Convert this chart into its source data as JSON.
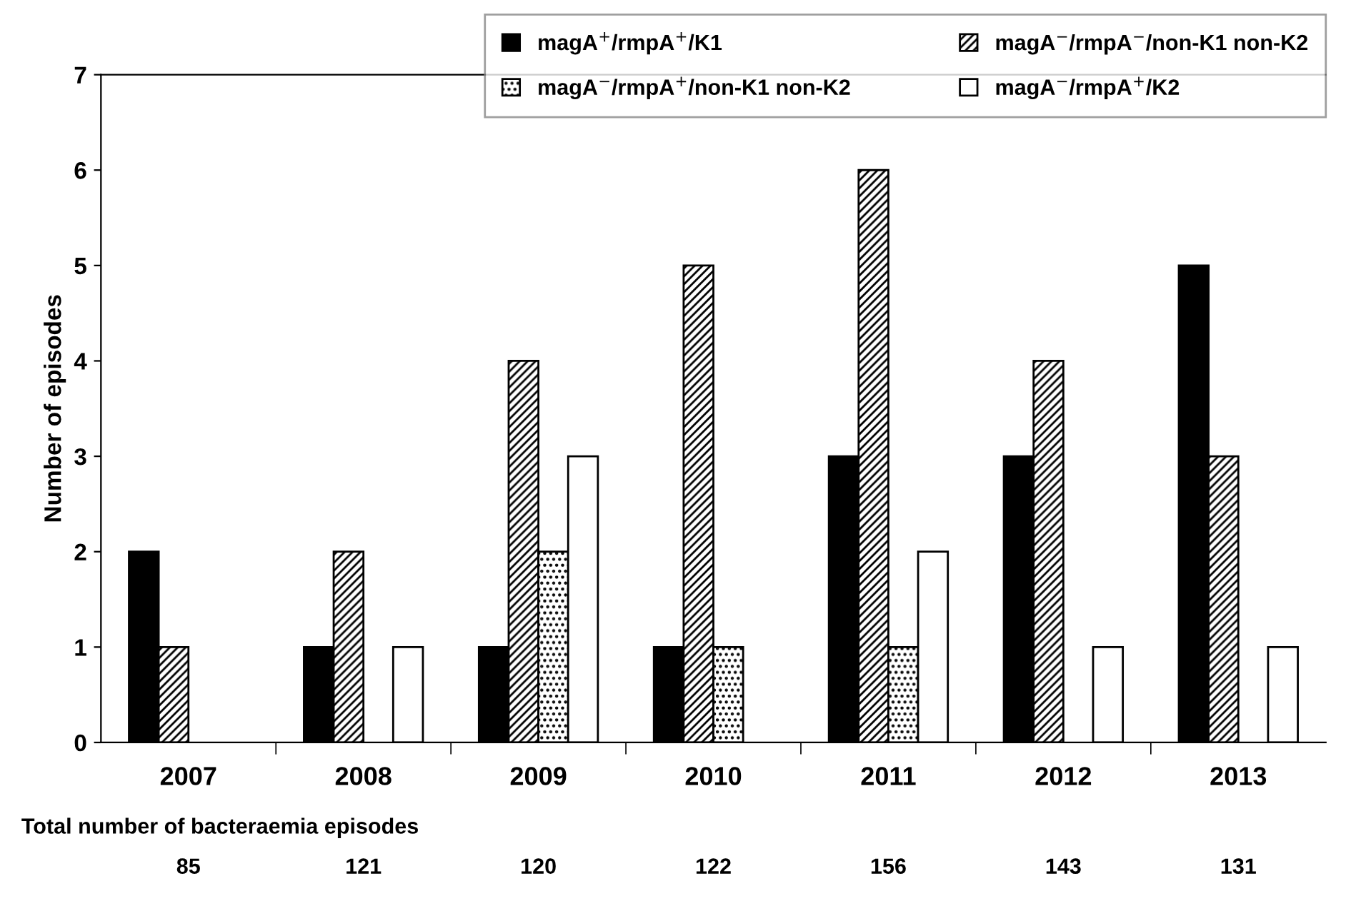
{
  "chart_data": {
    "type": "bar",
    "ylabel": "Number of episodes",
    "categories": [
      "2007",
      "2008",
      "2009",
      "2010",
      "2011",
      "2012",
      "2013"
    ],
    "series": [
      {
        "name": "magA$^{+}$/rmpA$^{+}$/K1",
        "color": "#000000",
        "values": [
          2,
          1,
          1,
          1,
          3,
          3,
          5
        ]
      },
      {
        "name": "magA$^{−}$/rmpA$^{−}$/non-K1 non-K2",
        "color": "#000000",
        "values": [
          1,
          2,
          4,
          5,
          6,
          4,
          3
        ]
      },
      {
        "name": "magA$^{−}$/rmpA$^{+}$/non-K1 non-K2",
        "color": "#000000",
        "values": [
          null,
          null,
          2,
          1,
          1,
          null,
          null
        ]
      },
      {
        "name": "magA$^{−}$/rmpA$^{+}$/K2",
        "color": "#ffffff",
        "values": [
          null,
          1,
          3,
          null,
          2,
          1,
          1
        ]
      }
    ],
    "ylim": [
      0,
      7
    ],
    "yticks": [
      0,
      1,
      2,
      3,
      4,
      5,
      6,
      7
    ],
    "grid": false,
    "legend": "top right",
    "annotations": [
      "Total number of bacteraemia episodes",
      "85",
      "121",
      "120",
      "122",
      "156",
      "143",
      "131"
    ]
  }
}
